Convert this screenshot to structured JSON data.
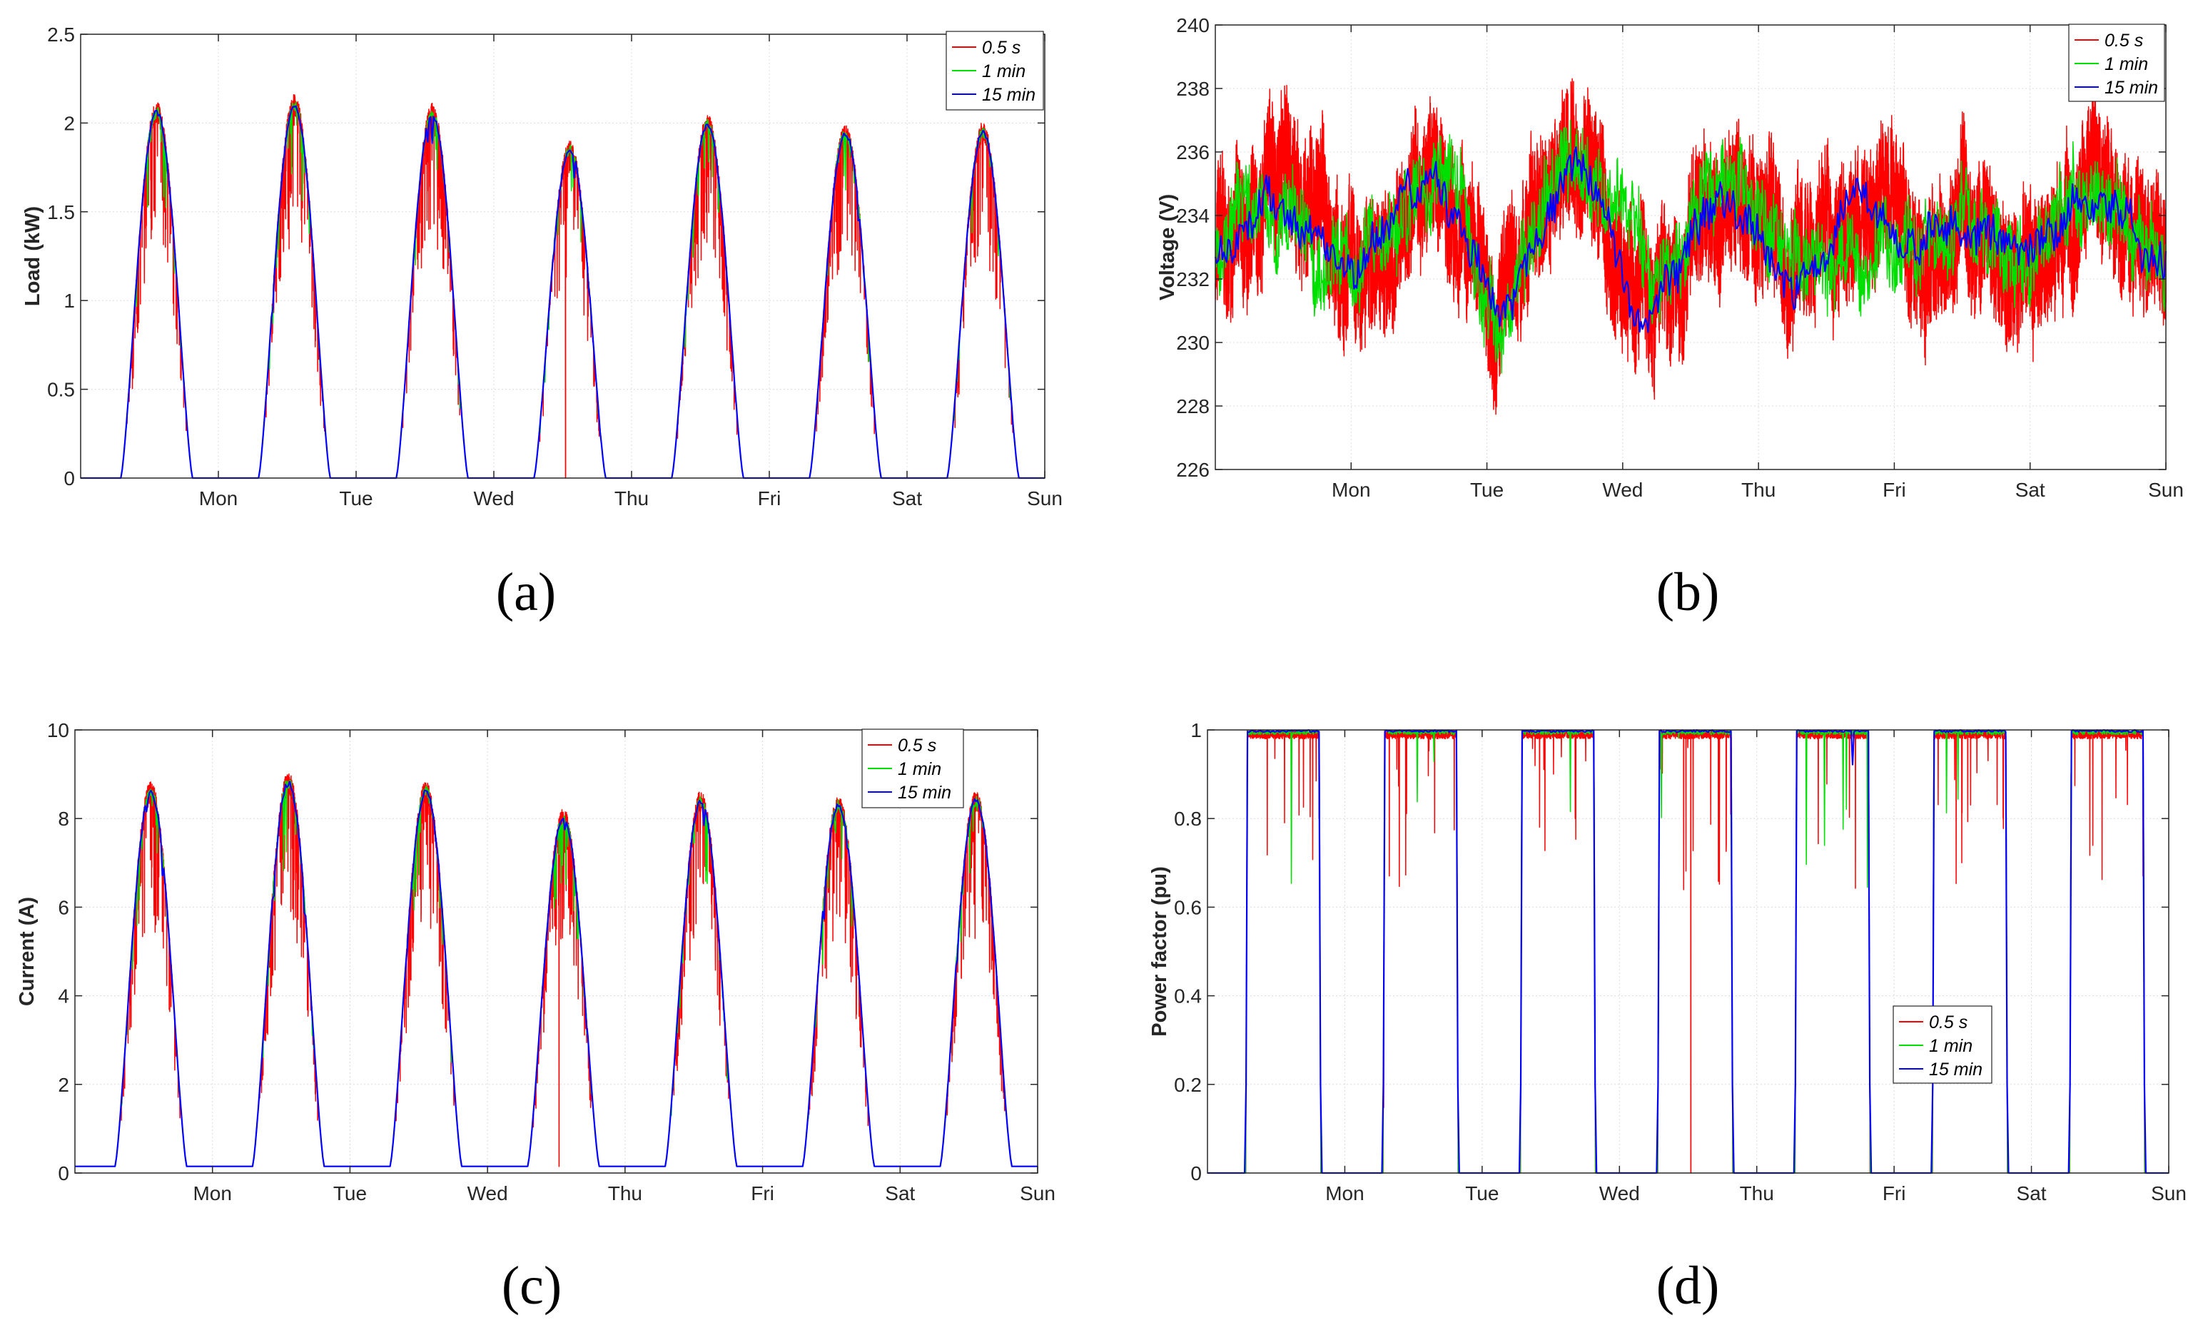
{
  "figure": {
    "line_colors": {
      "0.5 s": "#ff0000",
      "1 min": "#00e000",
      "15 min": "#0000ff"
    }
  },
  "chart_data": [
    {
      "id": "a",
      "type": "line",
      "panel_label": "(a)",
      "ylabel": "Load (kW)",
      "ylim": [
        0,
        2.5
      ],
      "yticks": [
        "0",
        "0.5",
        "1",
        "1.5",
        "2",
        "2.5"
      ],
      "xlim_days": [
        0,
        7
      ],
      "xtick_labels": [
        "Mon",
        "Tue",
        "Wed",
        "Thu",
        "Fri",
        "Sat",
        "Sun"
      ],
      "legend": [
        "0.5 s",
        "1 min",
        "15 min"
      ],
      "legend_position": "top-right",
      "grid": true,
      "series_model": {
        "kind": "daily-solar",
        "base": 0.0,
        "peaks": [
          2.06,
          2.1,
          2.05,
          1.85,
          1.99,
          1.94,
          1.95
        ],
        "on_hour": 7.0,
        "off_hour": 19.5,
        "spike_day": 3
      }
    },
    {
      "id": "b",
      "type": "line",
      "panel_label": "(b)",
      "ylabel": "Voltage (V)",
      "ylim": [
        226,
        240
      ],
      "yticks": [
        "226",
        "228",
        "230",
        "232",
        "234",
        "236",
        "238",
        "240"
      ],
      "xlim_days": [
        0,
        7
      ],
      "xtick_labels": [
        "Mon",
        "Tue",
        "Wed",
        "Thu",
        "Fri",
        "Sat",
        "Sun"
      ],
      "legend": [
        "0.5 s",
        "1 min",
        "15 min"
      ],
      "legend_position": "top-right",
      "grid": true,
      "series_model": {
        "kind": "voltage",
        "mean": 233.5,
        "range": [
          228,
          238.5
        ]
      }
    },
    {
      "id": "c",
      "type": "line",
      "panel_label": "(c)",
      "ylabel": "Current (A)",
      "ylim": [
        0,
        10
      ],
      "yticks": [
        "0",
        "2",
        "4",
        "6",
        "8",
        "10"
      ],
      "xlim_days": [
        0,
        7
      ],
      "xtick_labels": [
        "Mon",
        "Tue",
        "Wed",
        "Thu",
        "Fri",
        "Sat",
        "Sun"
      ],
      "legend": [
        "0.5 s",
        "1 min",
        "15 min"
      ],
      "legend_position": "top-right",
      "grid": true,
      "series_model": {
        "kind": "daily-solar",
        "base": 0.15,
        "peaks": [
          8.6,
          8.8,
          8.6,
          8.0,
          8.4,
          8.3,
          8.4
        ],
        "on_hour": 7.0,
        "off_hour": 19.5,
        "spike_day": 3
      }
    },
    {
      "id": "d",
      "type": "line",
      "panel_label": "(d)",
      "ylabel": "Power factor (pu)",
      "ylim": [
        0,
        1
      ],
      "yticks": [
        "0",
        "0.2",
        "0.4",
        "0.6",
        "0.8",
        "1"
      ],
      "xlim_days": [
        0,
        7
      ],
      "xtick_labels": [
        "Mon",
        "Tue",
        "Wed",
        "Thu",
        "Fri",
        "Sat",
        "Sun"
      ],
      "legend": [
        "0.5 s",
        "1 min",
        "15 min"
      ],
      "legend_position": "middle-right",
      "grid": true,
      "series_model": {
        "kind": "power-factor",
        "on_value": 1.0,
        "off_value": 0.0,
        "on_hour": 7.0,
        "off_hour": 19.5,
        "spike_day": 3
      }
    }
  ]
}
